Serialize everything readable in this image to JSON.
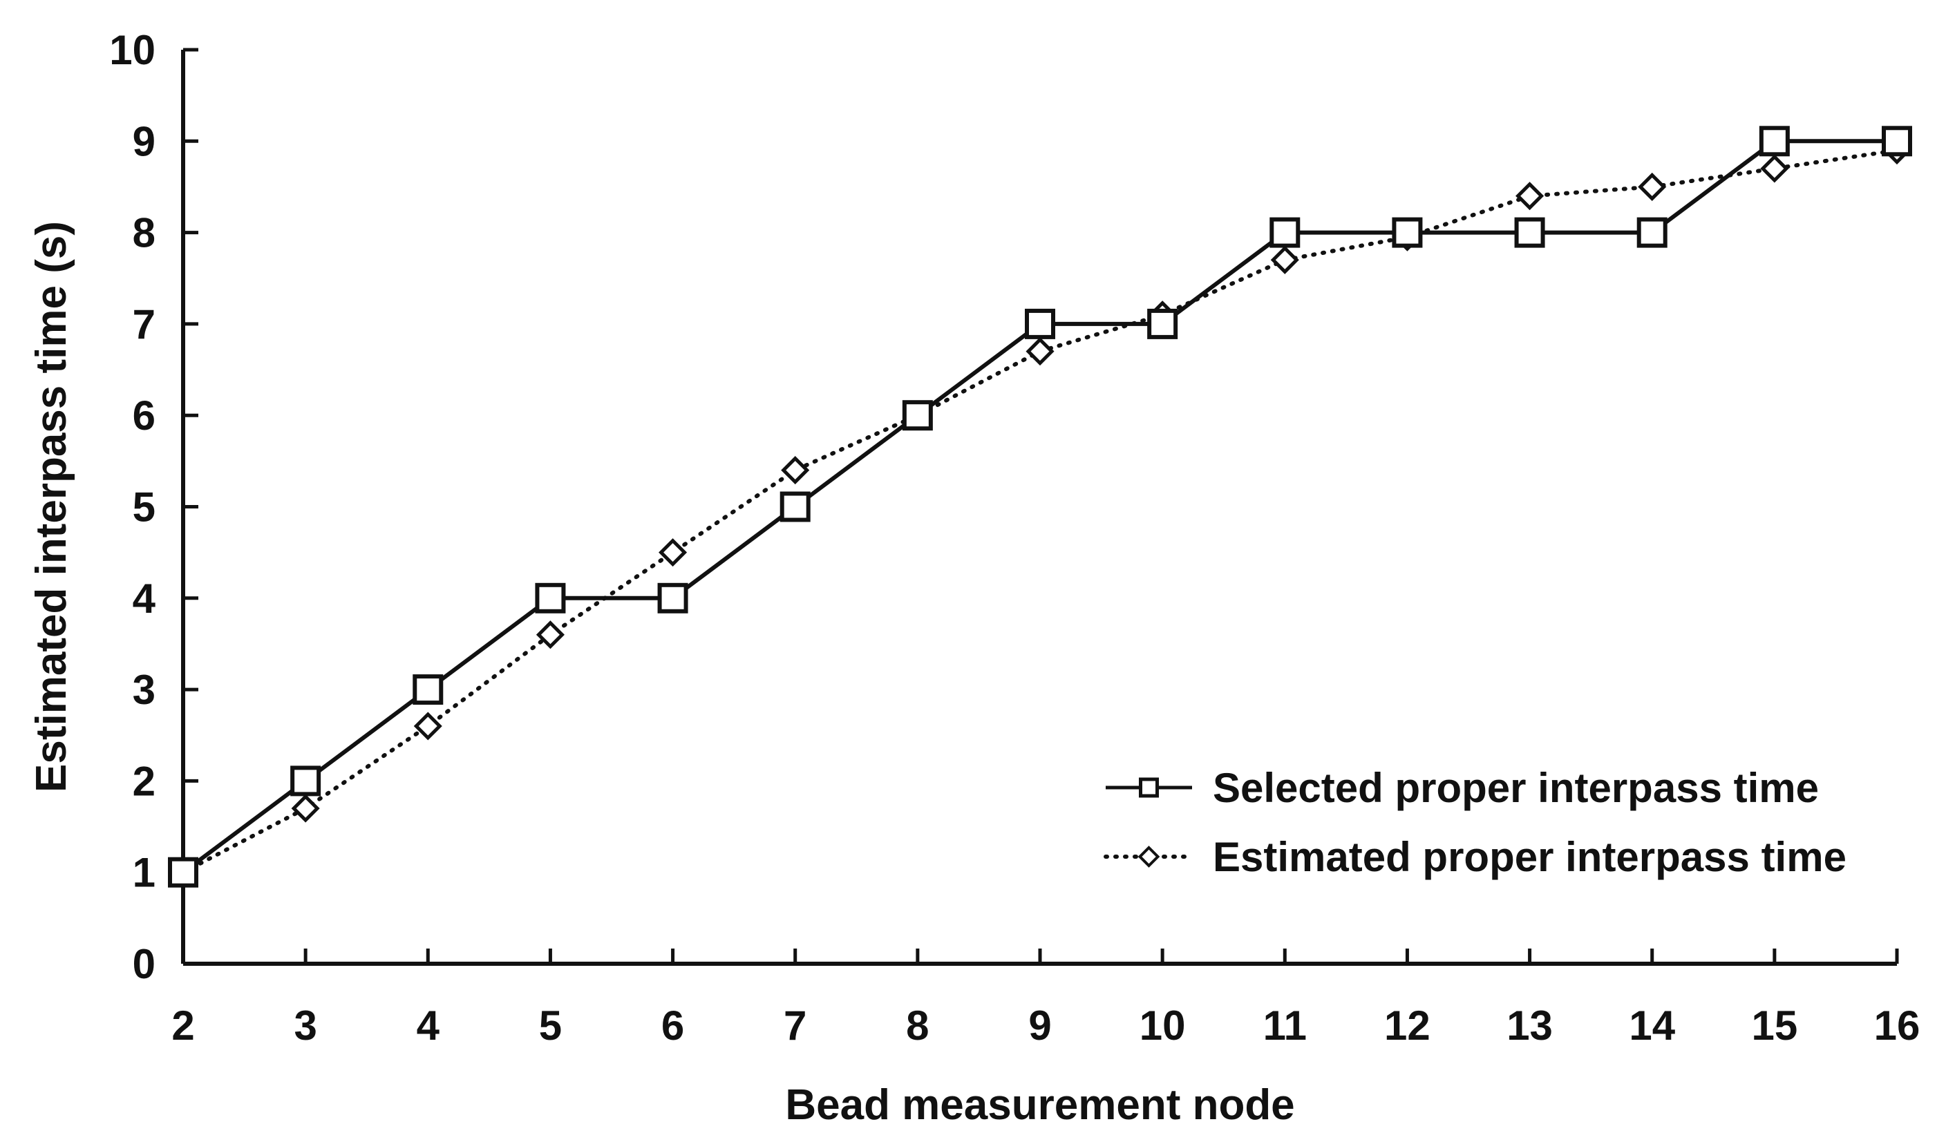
{
  "chart_data": {
    "type": "line",
    "title": "",
    "xlabel": "Bead measurement node",
    "ylabel": "Estimated interpass time (s)",
    "x": [
      2,
      3,
      4,
      5,
      6,
      7,
      8,
      9,
      10,
      11,
      12,
      13,
      14,
      15,
      16
    ],
    "x_tick_labels": [
      "2",
      "3",
      "4",
      "5",
      "6",
      "7",
      "8",
      "9",
      "10",
      "11",
      "12",
      "13",
      "14",
      "15",
      "16"
    ],
    "y_tick_labels": [
      "0",
      "1",
      "2",
      "3",
      "4",
      "5",
      "6",
      "7",
      "8",
      "9",
      "10"
    ],
    "xlim": [
      2,
      16
    ],
    "ylim": [
      0,
      10
    ],
    "grid": false,
    "legend_position": "lower-right",
    "series": [
      {
        "name": "Selected proper interpass time",
        "marker": "square",
        "line_style": "solid",
        "color": "#111111",
        "values": [
          1,
          2,
          3,
          4,
          4,
          5,
          6,
          7,
          7,
          8,
          8,
          8,
          8,
          9,
          9
        ]
      },
      {
        "name": "Estimated proper interpass time",
        "marker": "diamond",
        "line_style": "dotted",
        "color": "#111111",
        "values": [
          1,
          1.7,
          2.6,
          3.6,
          4.5,
          5.4,
          6.0,
          6.7,
          7.1,
          7.7,
          7.95,
          8.4,
          8.5,
          8.7,
          8.9
        ]
      }
    ]
  }
}
